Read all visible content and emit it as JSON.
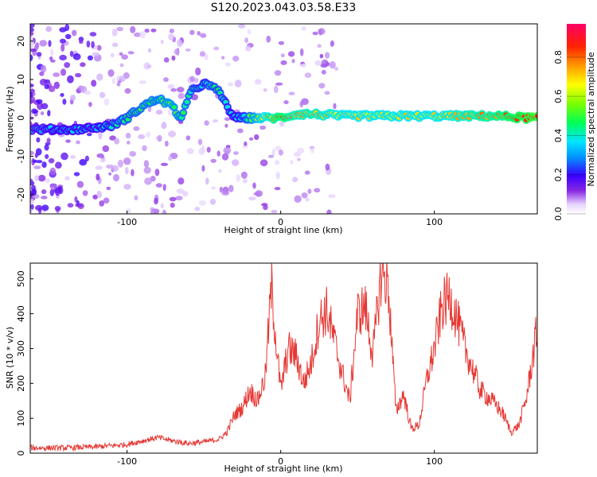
{
  "title": "S120.2023.043.03.58.E33",
  "chart_data": [
    {
      "type": "heatmap",
      "xlabel": "Height of straight line (km)",
      "ylabel": "Frequency (Hz)",
      "xlim": [
        -163,
        167
      ],
      "ylim": [
        -25,
        24.5
      ],
      "xticks": [
        -100,
        0,
        100
      ],
      "yticks": [
        -20,
        -10,
        0,
        10,
        20
      ],
      "colorbar": {
        "label": "Normalized spectral amplitude",
        "range": [
          0,
          0.97
        ],
        "ticks": [
          0.0,
          0.2,
          0.4,
          0.6,
          0.8
        ]
      },
      "ridge": {
        "x": [
          -163,
          -150,
          -135,
          -120,
          -110,
          -100,
          -90,
          -80,
          -72,
          -65,
          -58,
          -50,
          -45,
          -40,
          -35,
          -30,
          -25,
          -20,
          -10,
          0,
          10,
          20,
          40,
          60,
          80,
          100,
          120,
          140,
          160,
          167
        ],
        "freq": [
          -3,
          -3,
          -3,
          -2.5,
          -2,
          0,
          3,
          5,
          3.5,
          0,
          7,
          9,
          8,
          7,
          3,
          0,
          0,
          0,
          0,
          0,
          1,
          1,
          0.5,
          0.5,
          0.5,
          0.5,
          0.5,
          0.5,
          0,
          0
        ],
        "amplitude": [
          0.3,
          0.35,
          0.35,
          0.35,
          0.4,
          0.45,
          0.5,
          0.5,
          0.55,
          0.5,
          0.45,
          0.4,
          0.45,
          0.45,
          0.4,
          0.35,
          0.4,
          0.5,
          0.7,
          0.85,
          0.75,
          0.75,
          0.7,
          0.7,
          0.7,
          0.7,
          0.75,
          0.8,
          0.9,
          0.95
        ]
      },
      "grid": false
    },
    {
      "type": "line",
      "xlabel": "Height of straight line (km)",
      "ylabel": "SNR (10 * v/v)",
      "xlim": [
        -163,
        167
      ],
      "ylim": [
        0,
        545
      ],
      "xticks": [
        -100,
        0,
        100
      ],
      "yticks": [
        0,
        100,
        200,
        300,
        400,
        500
      ],
      "series": [
        {
          "color": "#e53935",
          "x": [
            -163,
            -140,
            -120,
            -100,
            -90,
            -80,
            -70,
            -60,
            -50,
            -40,
            -35,
            -30,
            -25,
            -20,
            -15,
            -10,
            -6,
            -3,
            0,
            5,
            10,
            15,
            20,
            25,
            30,
            35,
            40,
            45,
            50,
            55,
            60,
            65,
            67,
            70,
            75,
            80,
            85,
            90,
            95,
            100,
            105,
            110,
            115,
            120,
            125,
            130,
            135,
            140,
            145,
            150,
            155,
            160,
            167
          ],
          "y": [
            15,
            15,
            18,
            25,
            35,
            45,
            35,
            28,
            32,
            40,
            60,
            110,
            130,
            180,
            150,
            220,
            480,
            320,
            180,
            300,
            280,
            200,
            260,
            380,
            410,
            320,
            230,
            150,
            400,
            420,
            280,
            500,
            510,
            480,
            120,
            170,
            70,
            80,
            210,
            300,
            420,
            450,
            380,
            300,
            240,
            180,
            160,
            140,
            110,
            60,
            80,
            160,
            360
          ]
        }
      ],
      "grid": false
    }
  ]
}
